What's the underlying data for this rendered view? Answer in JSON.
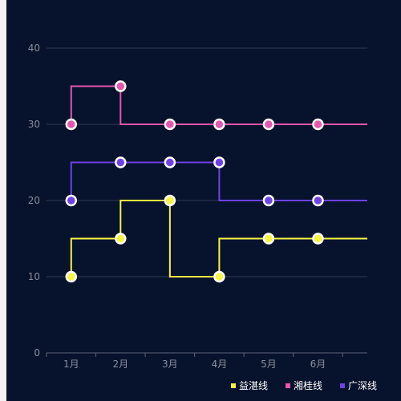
{
  "chart_data": {
    "type": "line",
    "step": "start",
    "categories": [
      "1月",
      "2月",
      "3月",
      "4月",
      "5月",
      "6月"
    ],
    "ylim": [
      0,
      40
    ],
    "yticks": [
      0,
      10,
      20,
      30,
      40
    ],
    "grid": true,
    "legend_position": "bottom-right",
    "series": [
      {
        "name": "益湛线",
        "color": "#f7f541",
        "values": [
          10,
          15,
          20,
          10,
          15,
          15
        ]
      },
      {
        "name": "湘桂线",
        "color": "#e556ad",
        "values": [
          30,
          35,
          30,
          30,
          30,
          30
        ]
      },
      {
        "name": "广深线",
        "color": "#6d43e8",
        "values": [
          20,
          25,
          25,
          25,
          20,
          20
        ]
      }
    ]
  }
}
